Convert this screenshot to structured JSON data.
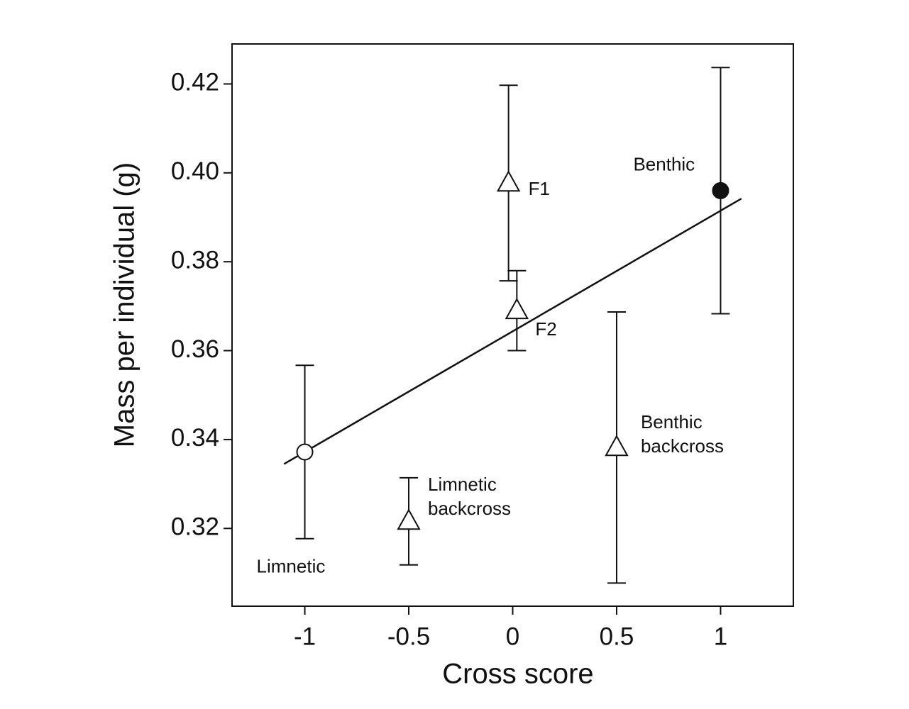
{
  "chart_data": {
    "type": "scatter",
    "x_label": "Cross score",
    "y_label": "Mass per individual (g)",
    "xlim": [
      -1.35,
      1.35
    ],
    "ylim": [
      0.3025,
      0.429
    ],
    "xticks": [
      -1,
      -0.5,
      0,
      0.5,
      1
    ],
    "yticks": [
      0.32,
      0.34,
      0.36,
      0.38,
      {
        "value": 0.4,
        "label": "0.40"
      },
      0.42
    ],
    "color": "#111111",
    "points": [
      {
        "label": [
          "Limnetic"
        ],
        "x": -1,
        "y": 0.3372,
        "error": 0.0195,
        "marker": "circle-open"
      },
      {
        "label": [
          "Limnetic",
          "backcross"
        ],
        "x": -0.5,
        "y": 0.3216,
        "error": 0.0098,
        "marker": "triangle-open"
      },
      {
        "label": [
          "F1"
        ],
        "x": -0.02,
        "y": 0.3977,
        "error": 0.022,
        "marker": "triangle-open"
      },
      {
        "label": [
          "F2"
        ],
        "x": 0.02,
        "y": 0.369,
        "error": 0.009,
        "marker": "triangle-open"
      },
      {
        "label": [
          "Benthic",
          "backcross"
        ],
        "x": 0.5,
        "y": 0.3382,
        "error": 0.0305,
        "marker": "triangle-open"
      },
      {
        "label": [
          "Benthic"
        ],
        "x": 1,
        "y": 0.396,
        "error": 0.0277,
        "marker": "circle-filled"
      }
    ],
    "trend_line": {
      "x": [
        -1.1,
        1.1
      ],
      "y": [
        0.3345,
        0.3942
      ]
    }
  }
}
